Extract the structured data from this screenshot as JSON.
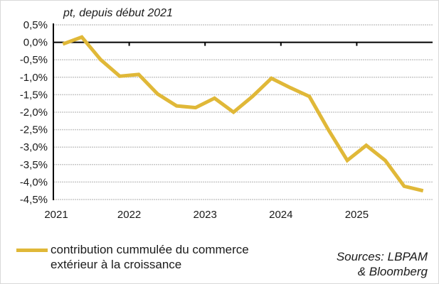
{
  "chart_data": {
    "type": "line",
    "title": "pt, depuis début 2021",
    "xlabel": "",
    "ylabel": "",
    "ylim": [
      -4.5,
      0.5
    ],
    "yticks": [
      "0,5%",
      "0,0%",
      "-0,5%",
      "-1,0%",
      "-1,5%",
      "-2,0%",
      "-2,5%",
      "-3,0%",
      "-3,5%",
      "-4,0%",
      "-4,5%"
    ],
    "ytick_values": [
      0.5,
      0,
      -0.5,
      -1,
      -1.5,
      -2,
      -2.5,
      -3,
      -3.5,
      -4,
      -4.5
    ],
    "xticks": [
      "2021",
      "2022",
      "2023",
      "2024",
      "2025"
    ],
    "grid": true,
    "x": [
      "2021T1",
      "2021T2",
      "2021T3",
      "2021T4",
      "2022T1",
      "2022T2",
      "2022T3",
      "2022T4",
      "2023T1",
      "2023T2",
      "2023T3",
      "2023T4",
      "2024T1",
      "2024T2",
      "2024T3",
      "2024T4",
      "2025T1",
      "2025T2",
      "2025T3",
      "2025T4"
    ],
    "series": [
      {
        "name": "contribution cummulée du commerce extérieur à la croissance",
        "color": "#E0B838",
        "values": [
          -0.05,
          0.15,
          -0.5,
          -0.97,
          -0.92,
          -1.48,
          -1.82,
          -1.87,
          -1.6,
          -2.0,
          -1.55,
          -1.03,
          -1.3,
          -1.55,
          -2.5,
          -3.38,
          -2.95,
          -3.38,
          -4.12,
          -4.25
        ]
      }
    ],
    "legend_position": "bottom-left"
  },
  "legend": {
    "label": "contribution cummulée du commerce extérieur à la croissance"
  },
  "sources": {
    "line1": "Sources: LBPAM",
    "line2": "& Bloomberg"
  }
}
